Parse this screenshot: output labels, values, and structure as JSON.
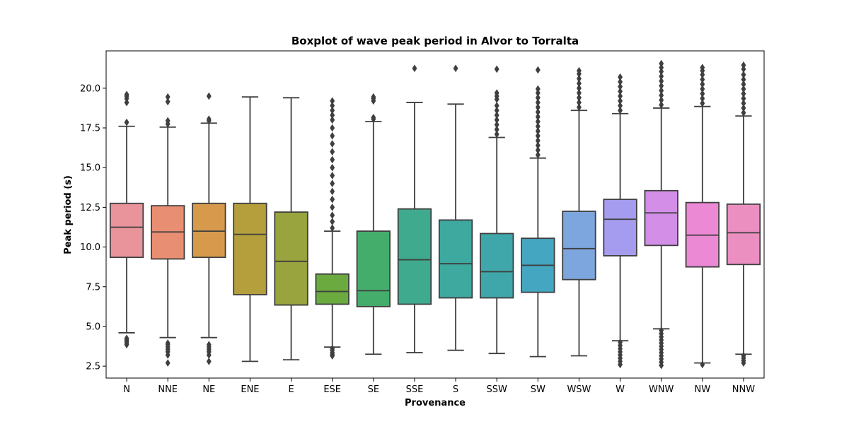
{
  "chart_data": {
    "type": "boxplot",
    "title": "Boxplot of wave peak period in Alvor to Torralta",
    "xlabel": "Provenance",
    "ylabel": "Peak period (s)",
    "categories": [
      "N",
      "NNE",
      "NE",
      "ENE",
      "E",
      "ESE",
      "SE",
      "SSE",
      "S",
      "SSW",
      "SW",
      "WSW",
      "W",
      "WNW",
      "NW",
      "NNW"
    ],
    "ylim": [
      1.75,
      22.35
    ],
    "yticks": [
      "2.5",
      "5.0",
      "7.5",
      "10.0",
      "12.5",
      "15.0",
      "17.5",
      "20.0"
    ],
    "grid": false,
    "legend": "none",
    "colors": [
      "#e9949b",
      "#e88f73",
      "#d79a4c",
      "#b59f3d",
      "#99a43f",
      "#6aaa3f",
      "#45ad6c",
      "#3faa8e",
      "#3ea99f",
      "#3fa7aa",
      "#45a6c1",
      "#7da5de",
      "#a69cef",
      "#d38ee8",
      "#ec89d4",
      "#ea8fc0"
    ],
    "boxes": [
      {
        "category": "N",
        "whisker_low": 4.6,
        "q1": 9.35,
        "median": 11.25,
        "q3": 12.75,
        "whisker_high": 17.6,
        "outliers": [
          3.85,
          3.95,
          4.05,
          4.15,
          4.25,
          17.85,
          19.1,
          19.35,
          19.5,
          19.6
        ]
      },
      {
        "category": "NNE",
        "whisker_low": 4.3,
        "q1": 9.25,
        "median": 10.95,
        "q3": 12.6,
        "whisker_high": 17.55,
        "outliers": [
          2.7,
          3.2,
          3.4,
          3.55,
          3.7,
          3.85,
          3.95,
          17.75,
          17.95,
          19.15,
          19.45
        ]
      },
      {
        "category": "NE",
        "whisker_low": 4.3,
        "q1": 9.35,
        "median": 11.0,
        "q3": 12.75,
        "whisker_high": 17.8,
        "outliers": [
          2.8,
          3.2,
          3.4,
          3.55,
          3.7,
          3.85,
          17.95,
          18.05,
          19.5
        ]
      },
      {
        "category": "ENE",
        "whisker_low": 2.8,
        "q1": 7.0,
        "median": 10.8,
        "q3": 12.75,
        "whisker_high": 19.45,
        "outliers": []
      },
      {
        "category": "E",
        "whisker_low": 2.9,
        "q1": 6.35,
        "median": 9.1,
        "q3": 12.2,
        "whisker_high": 19.4,
        "outliers": []
      },
      {
        "category": "ESE",
        "whisker_low": 3.7,
        "q1": 6.4,
        "median": 7.2,
        "q3": 8.3,
        "whisker_high": 11.0,
        "outliers": [
          3.15,
          3.25,
          3.35,
          3.5,
          3.6,
          11.2,
          11.6,
          12.0,
          12.5,
          13.0,
          13.5,
          14.0,
          14.5,
          15.0,
          15.5,
          16.0,
          16.5,
          17.0,
          17.5,
          18.0,
          18.3,
          18.6,
          18.9,
          19.2
        ]
      },
      {
        "category": "SE",
        "whisker_low": 3.25,
        "q1": 6.25,
        "median": 7.25,
        "q3": 11.0,
        "whisker_high": 17.9,
        "outliers": [
          18.05,
          18.15,
          19.2,
          19.35,
          19.45
        ]
      },
      {
        "category": "SSE",
        "whisker_low": 3.35,
        "q1": 6.4,
        "median": 9.2,
        "q3": 12.4,
        "whisker_high": 19.1,
        "outliers": [
          21.25
        ]
      },
      {
        "category": "S",
        "whisker_low": 3.5,
        "q1": 6.8,
        "median": 8.95,
        "q3": 11.7,
        "whisker_high": 19.0,
        "outliers": [
          21.25
        ]
      },
      {
        "category": "SSW",
        "whisker_low": 3.3,
        "q1": 6.8,
        "median": 8.45,
        "q3": 10.85,
        "whisker_high": 16.9,
        "outliers": [
          17.1,
          17.4,
          17.7,
          18.0,
          18.3,
          18.6,
          18.9,
          19.3,
          19.5,
          19.7,
          21.2
        ]
      },
      {
        "category": "SW",
        "whisker_low": 3.1,
        "q1": 7.15,
        "median": 8.85,
        "q3": 10.55,
        "whisker_high": 15.6,
        "outliers": [
          15.8,
          16.1,
          16.4,
          16.7,
          17.0,
          17.3,
          17.6,
          17.9,
          18.2,
          18.5,
          18.8,
          19.1,
          19.4,
          19.7,
          19.95,
          21.15
        ]
      },
      {
        "category": "WSW",
        "whisker_low": 3.15,
        "q1": 7.95,
        "median": 9.9,
        "q3": 12.25,
        "whisker_high": 18.6,
        "outliers": [
          18.8,
          19.1,
          19.4,
          19.7,
          20.0,
          20.3,
          20.6,
          20.9,
          21.1
        ]
      },
      {
        "category": "W",
        "whisker_low": 4.1,
        "q1": 9.45,
        "median": 11.75,
        "q3": 13.0,
        "whisker_high": 18.4,
        "outliers": [
          2.6,
          2.8,
          3.0,
          3.2,
          3.4,
          3.6,
          3.8,
          4.0,
          18.6,
          18.9,
          19.2,
          19.5,
          19.8,
          20.1,
          20.4,
          20.7
        ]
      },
      {
        "category": "WNW",
        "whisker_low": 4.85,
        "q1": 10.1,
        "median": 12.15,
        "q3": 13.55,
        "whisker_high": 18.75,
        "outliers": [
          2.55,
          2.75,
          2.95,
          3.15,
          3.35,
          3.55,
          3.75,
          3.95,
          4.15,
          4.35,
          4.55,
          4.75,
          18.95,
          19.25,
          19.55,
          19.85,
          20.15,
          20.45,
          20.75,
          21.05,
          21.3,
          21.55
        ]
      },
      {
        "category": "NW",
        "whisker_low": 2.7,
        "q1": 8.75,
        "median": 10.75,
        "q3": 12.8,
        "whisker_high": 18.85,
        "outliers": [
          2.6,
          19.05,
          19.35,
          19.65,
          19.95,
          20.25,
          20.55,
          20.85,
          21.1,
          21.3
        ]
      },
      {
        "category": "NNW",
        "whisker_low": 3.25,
        "q1": 8.9,
        "median": 10.9,
        "q3": 12.7,
        "whisker_high": 18.25,
        "outliers": [
          2.7,
          2.85,
          3.0,
          3.15,
          18.45,
          18.75,
          19.05,
          19.35,
          19.65,
          19.95,
          20.25,
          20.55,
          20.85,
          21.2,
          21.45
        ]
      }
    ]
  }
}
